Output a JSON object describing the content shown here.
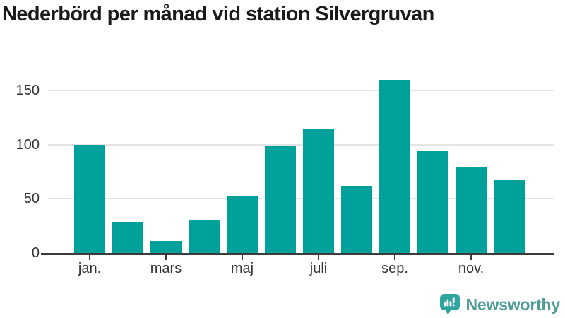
{
  "chart_data": {
    "type": "bar",
    "title": "Nederbörd per månad vid station Silvergruvan",
    "categories": [
      "jan.",
      "",
      "mars",
      "",
      "maj",
      "",
      "juli",
      "",
      "sep.",
      "",
      "nov.",
      ""
    ],
    "values": [
      100,
      29,
      11,
      30,
      52,
      99,
      114,
      62,
      160,
      94,
      79,
      67
    ],
    "x_tick_labels": [
      "jan.",
      "mars",
      "maj",
      "juli",
      "sep.",
      "nov."
    ],
    "labeled_indices": [
      0,
      2,
      4,
      6,
      8,
      10
    ],
    "y_ticks": [
      0,
      50,
      100,
      150
    ],
    "ylim": [
      0,
      168
    ],
    "xlabel": "",
    "ylabel": "",
    "grid": "horizontal",
    "legend": "none",
    "bar_color": "#00a09b",
    "gridline_color": "#e4e4e4",
    "axis_color": "#3b3b3b",
    "tick_label_color": "#333333"
  },
  "footer": {
    "brand": "Newsworthy",
    "brand_color": "#4f9c98",
    "logo_icon_color": "#2fa39e",
    "logo_icon": "newsworthy-speech-bubble-chart-icon"
  }
}
